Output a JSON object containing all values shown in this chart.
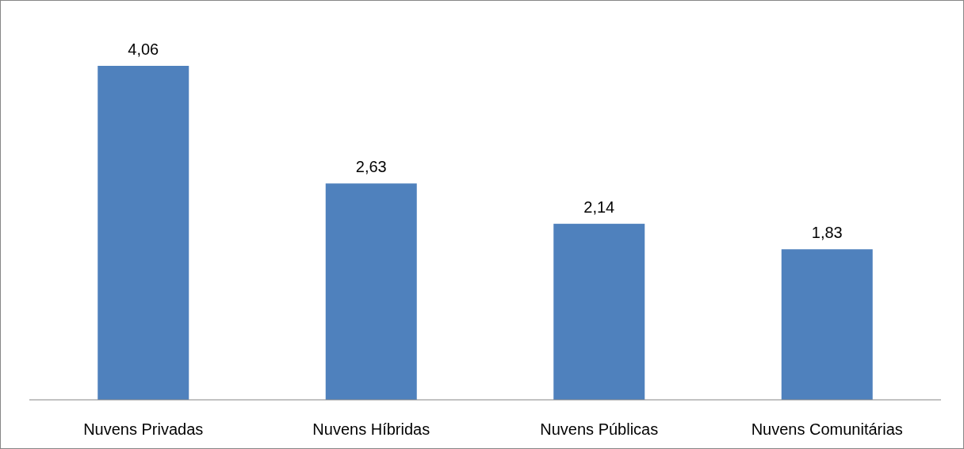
{
  "chart_data": {
    "type": "bar",
    "categories": [
      "Nuvens Privadas",
      "Nuvens Híbridas",
      "Nuvens Públicas",
      "Nuvens Comunitárias"
    ],
    "values": [
      4.06,
      2.63,
      2.14,
      1.83
    ],
    "value_labels": [
      "4,06",
      "2,63",
      "2,14",
      "1,83"
    ],
    "color": "#4f81bd"
  }
}
